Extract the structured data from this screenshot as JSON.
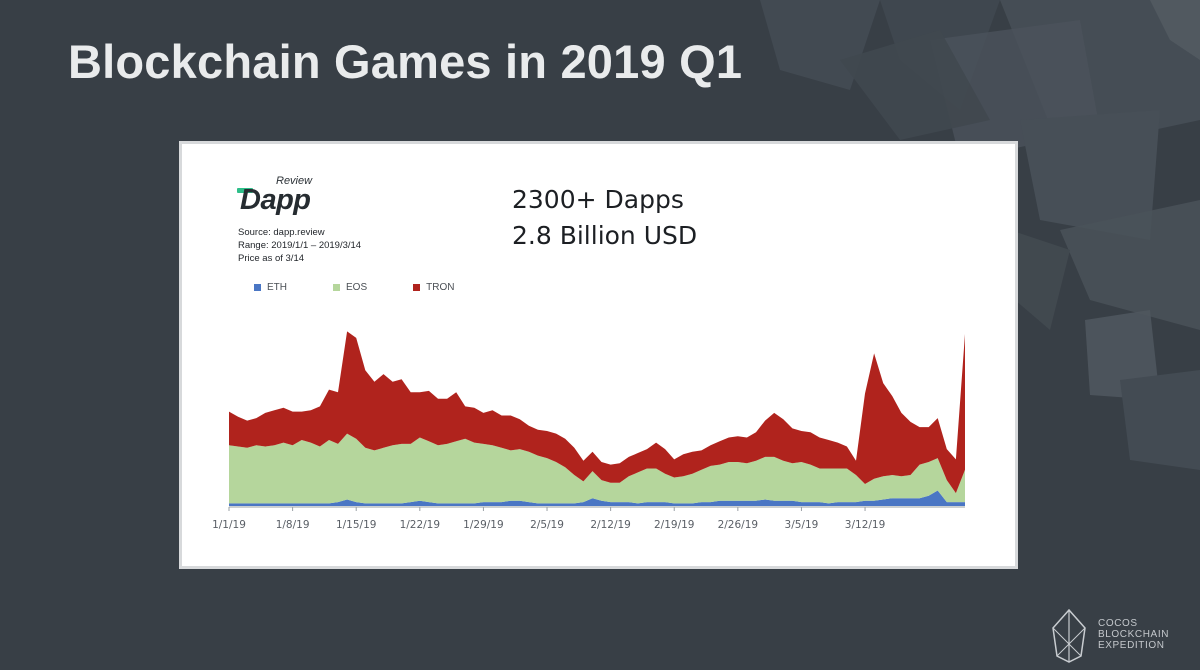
{
  "slide": {
    "title": "Blockchain Games in 2019 Q1",
    "corner_logo": {
      "icon": "leaf-crystal-icon",
      "line1": "COCOS",
      "line2": "BLOCKCHAIN",
      "line3": "EXPEDITION"
    }
  },
  "card": {
    "logo": {
      "small": "Review",
      "word": "Dapp"
    },
    "source_lines": [
      "Source: dapp.review",
      "Range: 2019/1/1 – 2019/3/14",
      "Price as of 3/14"
    ],
    "headline_lines": [
      "2300+ Dapps",
      "2.8 Billion USD"
    ]
  },
  "colors": {
    "background": "#383f46",
    "eth": "#4a76c4",
    "eos": "#b5d69c",
    "tron": "#b0231d"
  },
  "chart_data": {
    "type": "area",
    "stacked": true,
    "title": "",
    "xlabel": "",
    "ylabel": "",
    "y_axis_visible": false,
    "legend_position": "top-left",
    "x_tick_labels": [
      "1/1/19",
      "1/8/19",
      "1/15/19",
      "1/22/19",
      "1/29/19",
      "2/5/19",
      "2/12/19",
      "2/19/19",
      "2/26/19",
      "3/5/19",
      "3/12/19"
    ],
    "x_start": "2019-01-01",
    "x_end": "2019-03-14",
    "series": [
      {
        "name": "ETH",
        "values": [
          2,
          2,
          2,
          2,
          2,
          2,
          2,
          2,
          2,
          2,
          2,
          2,
          3,
          5,
          3,
          2,
          2,
          2,
          2,
          2,
          3,
          4,
          3,
          2,
          2,
          2,
          2,
          2,
          3,
          3,
          3,
          4,
          4,
          3,
          2,
          2,
          2,
          2,
          2,
          3,
          6,
          4,
          3,
          3,
          3,
          2,
          3,
          3,
          3,
          2,
          2,
          2,
          3,
          3,
          4,
          4,
          4,
          4,
          4,
          5,
          4,
          4,
          4,
          3,
          3,
          3,
          2,
          3,
          3,
          3,
          4,
          4,
          5,
          6,
          6,
          6,
          6,
          8,
          12,
          3,
          3,
          3
        ]
      },
      {
        "name": "EOS",
        "values": [
          45,
          44,
          43,
          45,
          44,
          45,
          47,
          45,
          49,
          47,
          44,
          49,
          45,
          51,
          49,
          43,
          41,
          43,
          45,
          46,
          45,
          49,
          47,
          45,
          46,
          48,
          50,
          47,
          45,
          44,
          42,
          39,
          40,
          39,
          37,
          35,
          32,
          28,
          22,
          16,
          21,
          16,
          15,
          15,
          20,
          24,
          26,
          26,
          22,
          20,
          21,
          23,
          25,
          28,
          28,
          30,
          30,
          29,
          31,
          33,
          34,
          31,
          29,
          31,
          29,
          26,
          27,
          26,
          26,
          21,
          13,
          17,
          18,
          18,
          17,
          18,
          26,
          26,
          25,
          17,
          7,
          25
        ]
      },
      {
        "name": "TRON",
        "values": [
          26,
          23,
          21,
          21,
          26,
          27,
          27,
          26,
          22,
          25,
          31,
          39,
          40,
          79,
          78,
          60,
          53,
          57,
          49,
          50,
          40,
          35,
          39,
          36,
          35,
          38,
          25,
          27,
          24,
          27,
          25,
          27,
          23,
          20,
          20,
          21,
          22,
          22,
          21,
          16,
          15,
          14,
          14,
          15,
          15,
          15,
          15,
          20,
          19,
          14,
          17,
          17,
          15,
          16,
          18,
          19,
          20,
          20,
          22,
          28,
          34,
          32,
          27,
          24,
          25,
          24,
          22,
          20,
          17,
          11,
          70,
          97,
          72,
          61,
          49,
          41,
          29,
          27,
          31,
          24,
          26,
          105
        ]
      }
    ]
  }
}
